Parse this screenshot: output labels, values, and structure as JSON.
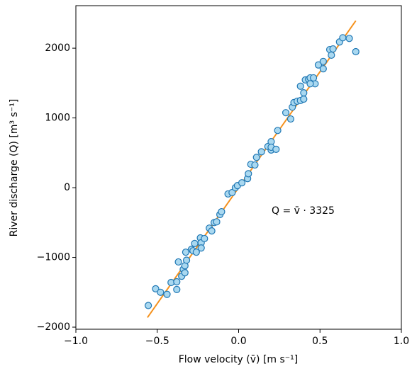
{
  "chart_data": {
    "type": "scatter",
    "xlabel": "Flow velocity (v̄) [m s⁻¹]",
    "ylabel": "River discharge (Q) [m³ s⁻¹]",
    "annotation": "Q = v̄ ·  3325",
    "xlim": [
      -1,
      1
    ],
    "ylim": [
      -2030,
      2610
    ],
    "xticks": [
      {
        "value": -1,
        "label": "−1.0"
      },
      {
        "value": -0.5,
        "label": "−0.5"
      },
      {
        "value": 0,
        "label": "0.0"
      },
      0.5,
      {
        "value": 1,
        "label": "1.0"
      }
    ],
    "yticks": [
      {
        "value": -2000,
        "label": "−2000"
      },
      {
        "value": -1000,
        "label": "−1000"
      },
      0,
      1000,
      2000
    ],
    "color": "#a9d8f0",
    "edgecolor": "#1f77b4",
    "x": [
      -0.555,
      -0.51,
      -0.48,
      -0.44,
      -0.415,
      -0.38,
      -0.38,
      -0.37,
      -0.35,
      -0.34,
      -0.33,
      -0.33,
      -0.32,
      -0.325,
      -0.29,
      -0.28,
      -0.27,
      -0.26,
      -0.235,
      -0.23,
      -0.21,
      -0.23,
      -0.18,
      -0.165,
      -0.15,
      -0.135,
      -0.115,
      -0.105,
      -0.065,
      -0.04,
      -0.02,
      -0.007,
      0.02,
      0.055,
      0.06,
      0.075,
      0.1,
      0.11,
      0.14,
      0.18,
      0.2,
      0.2,
      0.2,
      0.23,
      0.24,
      0.29,
      0.32,
      0.33,
      0.34,
      0.36,
      0.38,
      0.4,
      0.4,
      0.38,
      0.41,
      0.43,
      0.44,
      0.47,
      0.46,
      0.44,
      0.49,
      0.52,
      0.52,
      0.56,
      0.57,
      0.58,
      0.62,
      0.64,
      0.68,
      0.72
    ],
    "values": [
      -1690,
      -1450,
      -1500,
      -1530,
      -1360,
      -1460,
      -1350,
      -1065,
      -1270,
      -1170,
      -1220,
      -1120,
      -1040,
      -925,
      -885,
      -905,
      -800,
      -925,
      -720,
      -790,
      -730,
      -865,
      -580,
      -620,
      -500,
      -490,
      -385,
      -345,
      -90,
      -70,
      0,
      30,
      70,
      130,
      200,
      335,
      325,
      435,
      515,
      590,
      540,
      660,
      580,
      550,
      820,
      1075,
      985,
      1155,
      1220,
      1240,
      1250,
      1270,
      1360,
      1455,
      1545,
      1555,
      1575,
      1490,
      1575,
      1490,
      1760,
      1705,
      1810,
      1980,
      1900,
      1990,
      2090,
      2150,
      2140,
      1950
    ],
    "fit": {
      "x": [
        -0.56,
        0.72
      ],
      "values": [
        -1862,
        2394
      ],
      "color": "#f5921e"
    }
  }
}
